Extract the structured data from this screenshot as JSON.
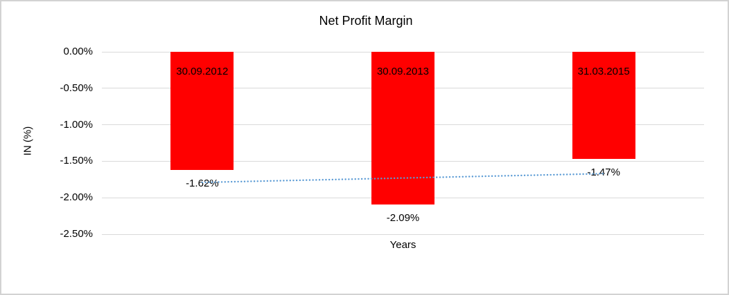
{
  "window": {
    "background_color": "#ffffff",
    "border_color": "#d2d2d2"
  },
  "chart_data": {
    "type": "bar",
    "title": "Net Profit Margin",
    "xlabel": "Years",
    "ylabel": "IN (%)",
    "categories": [
      "30.09.2012",
      "30.09.2013",
      "31.03.2015"
    ],
    "values": [
      -1.62,
      -2.09,
      -1.47
    ],
    "value_labels": [
      "-1.62%",
      "-2.09%",
      "-1.47%"
    ],
    "y_ticks": [
      "0.00%",
      "-0.50%",
      "-1.00%",
      "-1.50%",
      "-2.00%",
      "-2.50%"
    ],
    "y_tick_values": [
      0,
      -0.5,
      -1.0,
      -1.5,
      -2.0,
      -2.5
    ],
    "ylim": [
      0,
      -2.5
    ],
    "grid": true,
    "legend": "none",
    "bar_color": "#ff0000",
    "gridline_color": "#d9d9d9",
    "text_color": "#000000",
    "trendline": {
      "style": "dotted",
      "color": "#5b9bd5",
      "start_value": -1.79,
      "end_value": -1.67
    }
  }
}
